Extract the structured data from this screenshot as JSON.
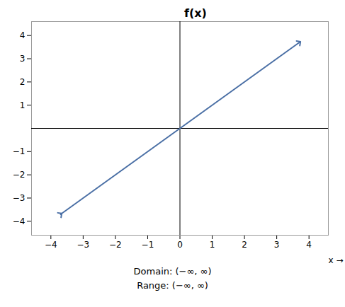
{
  "chart_data": {
    "type": "line",
    "title": "f(x)",
    "xlabel": "x",
    "x": [
      -3.7,
      3.7
    ],
    "series": [
      {
        "values": [
          -3.7,
          3.7
        ],
        "color": "#4a6fa5",
        "marker": "arrow"
      }
    ],
    "xlim": [
      -4.6,
      4.6
    ],
    "ylim": [
      -4.6,
      4.6
    ],
    "xticks": [
      {
        "value": -4,
        "label": "−4"
      },
      {
        "value": -3,
        "label": "−3"
      },
      {
        "value": -2,
        "label": "−2"
      },
      {
        "value": -1,
        "label": "−1"
      },
      0,
      1,
      2,
      3,
      4
    ],
    "yticks": [
      {
        "value": -4,
        "label": "−4"
      },
      {
        "value": -3,
        "label": "−3"
      },
      {
        "value": -2,
        "label": "−2"
      },
      {
        "value": -1,
        "label": "−1"
      },
      1,
      2,
      3,
      4
    ],
    "annotations": [
      "Domain: (−∞, ∞)",
      "Range: (−∞, ∞)"
    ]
  }
}
